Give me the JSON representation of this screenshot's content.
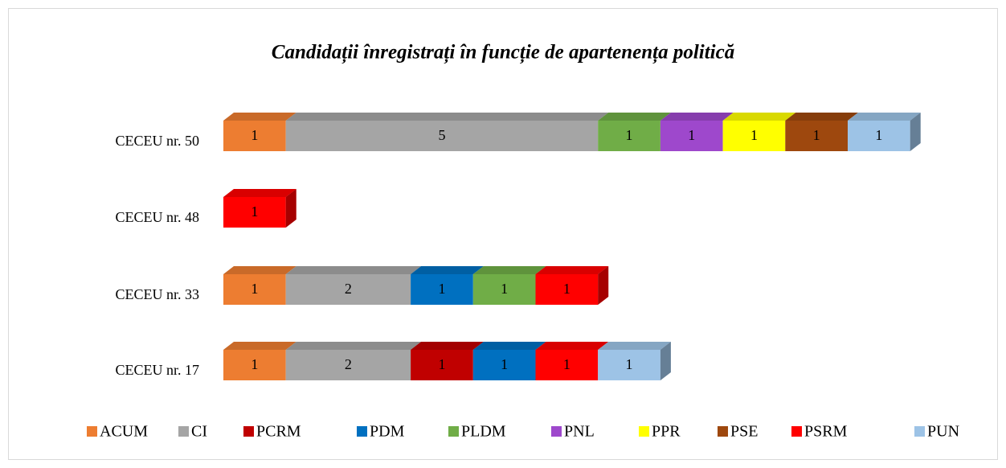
{
  "chart_data": {
    "type": "stacked-bar-3d",
    "title": "Candidații înregistrați în funcție de apartenența politică",
    "categories": [
      "CECEU nr. 50",
      "CECEU nr. 48",
      "CECEU nr. 33",
      "CECEU nr. 17"
    ],
    "series": [
      {
        "name": "ACUM",
        "color": "#ed7d31",
        "values": [
          1,
          null,
          1,
          1
        ]
      },
      {
        "name": "CI",
        "color": "#a5a5a5",
        "values": [
          5,
          null,
          2,
          2
        ]
      },
      {
        "name": "PCRM",
        "color": "#c00000",
        "values": [
          null,
          null,
          null,
          1
        ]
      },
      {
        "name": "PDM",
        "color": "#0070c0",
        "values": [
          null,
          null,
          1,
          1
        ]
      },
      {
        "name": "PLDM",
        "color": "#70ad47",
        "values": [
          1,
          null,
          1,
          null
        ]
      },
      {
        "name": "PNL",
        "color": "#9e48cc",
        "values": [
          1,
          null,
          null,
          null
        ]
      },
      {
        "name": "PPR",
        "color": "#ffff00",
        "values": [
          1,
          null,
          null,
          null
        ]
      },
      {
        "name": "PSE",
        "color": "#9e480e",
        "values": [
          1,
          null,
          null,
          null
        ]
      },
      {
        "name": "PSRM",
        "color": "#ff0000",
        "values": [
          null,
          1,
          1,
          1
        ]
      },
      {
        "name": "PUN",
        "color": "#9dc3e6",
        "values": [
          1,
          null,
          null,
          1
        ]
      }
    ],
    "legend": "bottom"
  }
}
